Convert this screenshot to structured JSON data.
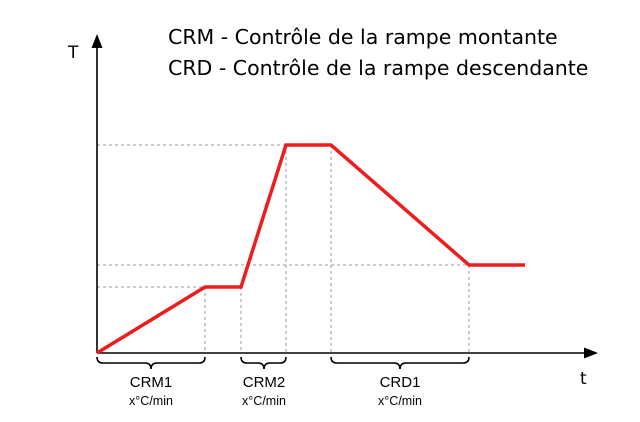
{
  "legend": {
    "crm": "CRM - Contrôle de la rampe montante",
    "crd": "CRD - Contrôle de la rampe descendante"
  },
  "axes": {
    "y_label": "T",
    "x_label": "t"
  },
  "segments": [
    {
      "label": "CRM1",
      "rate": "x°C/min"
    },
    {
      "label": "CRM2",
      "rate": "x°C/min"
    },
    {
      "label": "CRD1",
      "rate": "x°C/min"
    }
  ],
  "colors": {
    "profile": "#ee1c1c",
    "axis": "#000000",
    "guide": "#9a9a9a"
  }
}
